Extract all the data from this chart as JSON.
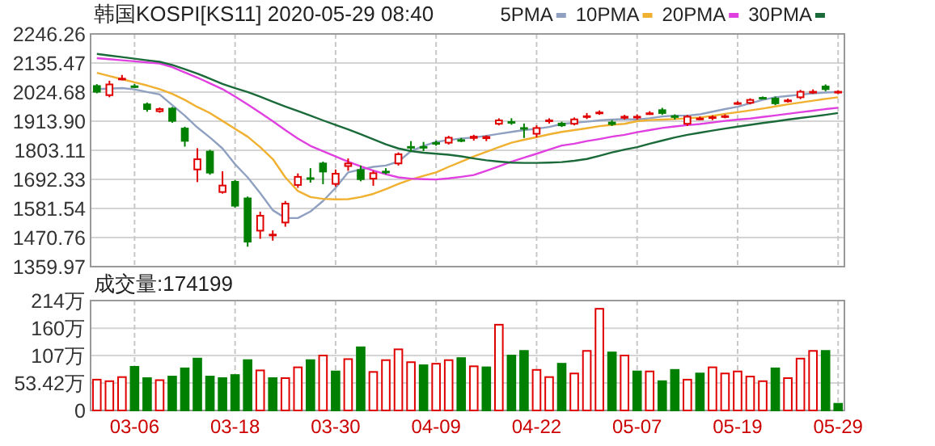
{
  "chart_data": [
    {
      "type": "candlestick",
      "title": "韩国KOSPI[KS11] 2020-05-29 08:40",
      "tick_labels": "y",
      "grid": true,
      "legend": "top right",
      "categories": [
        null,
        null,
        null,
        null,
        null,
        null,
        null,
        null,
        null,
        null,
        null,
        null,
        null,
        null,
        null,
        null,
        null,
        null,
        null,
        null,
        null,
        null,
        null,
        null,
        null,
        null,
        null,
        null,
        null,
        null,
        null,
        null,
        null,
        null,
        null,
        null,
        null,
        null,
        null,
        null,
        null,
        null,
        null,
        null,
        null,
        null,
        null,
        null,
        null,
        null,
        null,
        null,
        null,
        null,
        null,
        null,
        null,
        null,
        null,
        null
      ],
      "ylim": [
        1359.97,
        2246.26
      ],
      "yticks": [
        1359.97,
        1470.76,
        1581.54,
        1692.33,
        1803.11,
        {
          "value": 1913.9,
          "label": "1913.90"
        },
        2024.68,
        2135.47,
        2246.26
      ],
      "ohlc": [
        [
          2051,
          2055,
          2020,
          2023
        ],
        [
          2010,
          2068,
          2005,
          2057
        ],
        [
          2075,
          2090,
          2070,
          2079
        ],
        [
          2050,
          2055,
          2040,
          2046
        ],
        [
          1981,
          1985,
          1950,
          1957
        ],
        [
          1949,
          1966,
          1946,
          1963
        ],
        [
          1965,
          1968,
          1908,
          1912
        ],
        [
          1889,
          1893,
          1817,
          1836
        ],
        [
          1727,
          1811,
          1682,
          1772
        ],
        [
          1801,
          1805,
          1710,
          1715
        ],
        [
          1641,
          1723,
          1638,
          1672
        ],
        [
          1686,
          1690,
          1585,
          1589
        ],
        [
          1623,
          1627,
          1436,
          1452
        ],
        [
          1494,
          1569,
          1466,
          1557
        ],
        [
          1478,
          1498,
          1459,
          1485
        ],
        [
          1525,
          1610,
          1512,
          1603
        ],
        [
          1668,
          1715,
          1660,
          1705
        ],
        [
          1700,
          1735,
          1680,
          1698
        ],
        [
          1756,
          1760,
          1674,
          1719
        ],
        [
          1672,
          1730,
          1665,
          1717
        ],
        [
          1740,
          1772,
          1725,
          1756
        ],
        [
          1731,
          1745,
          1685,
          1690
        ],
        [
          1692,
          1725,
          1668,
          1719
        ],
        [
          1725,
          1735,
          1712,
          1723
        ],
        [
          1750,
          1795,
          1745,
          1791
        ],
        [
          1819,
          1838,
          1797,
          1817
        ],
        [
          1819,
          1835,
          1800,
          1817
        ],
        [
          1834,
          1840,
          1820,
          1830
        ],
        [
          1829,
          1858,
          1825,
          1854
        ],
        [
          1845,
          1850,
          1834,
          1837
        ],
        [
          1847,
          1862,
          1840,
          1858
        ],
        [
          1846,
          1860,
          1838,
          1857
        ],
        [
          1901,
          1925,
          1898,
          1920
        ],
        [
          1914,
          1925,
          1900,
          1912
        ],
        [
          1891,
          1905,
          1850,
          1883
        ],
        [
          1863,
          1898,
          1852,
          1891
        ],
        [
          1912,
          1925,
          1905,
          1920
        ],
        [
          1908,
          1912,
          1892,
          1895
        ],
        [
          1901,
          1928,
          1898,
          1924
        ],
        [
          1928,
          1945,
          1922,
          1936
        ],
        [
          1942,
          1955,
          1938,
          1950
        ],
        [
          1912,
          1918,
          1896,
          1900
        ],
        [
          1924,
          1938,
          1920,
          1934
        ],
        [
          1926,
          1940,
          1920,
          1934
        ],
        [
          1942,
          1952,
          1938,
          1947
        ],
        [
          1959,
          1965,
          1938,
          1942
        ],
        [
          1936,
          1940,
          1920,
          1928
        ],
        [
          1901,
          1938,
          1896,
          1934
        ],
        [
          1922,
          1932,
          1918,
          1927
        ],
        [
          1928,
          1936,
          1918,
          1932
        ],
        [
          1930,
          1940,
          1925,
          1936
        ],
        [
          1979,
          1990,
          1976,
          1986
        ],
        [
          1981,
          2001,
          1978,
          1998
        ],
        [
          2006,
          2008,
          2000,
          2004
        ],
        [
          2003,
          2008,
          1975,
          1979
        ],
        [
          1990,
          2000,
          1985,
          1996
        ],
        [
          2002,
          2033,
          1998,
          2029
        ],
        [
          2023,
          2035,
          2018,
          2029
        ],
        [
          2049,
          2054,
          2028,
          2033
        ],
        [
          2023,
          2032,
          2018,
          2029
        ]
      ],
      "colors": [
        "#008000",
        "#e00000",
        "#e00000",
        "#008000",
        "#008000",
        "#e00000",
        "#008000",
        "#008000",
        "#e00000",
        "#008000",
        "#e00000",
        "#008000",
        "#008000",
        "#e00000",
        "#e00000",
        "#e00000",
        "#e00000",
        "#008000",
        "#008000",
        "#e00000",
        "#e00000",
        "#008000",
        "#e00000",
        "#008000",
        "#e00000",
        "#008000",
        "#008000",
        "#008000",
        "#e00000",
        "#008000",
        "#e00000",
        "#e00000",
        "#e00000",
        "#008000",
        "#008000",
        "#e00000",
        "#e00000",
        "#008000",
        "#e00000",
        "#e00000",
        "#e00000",
        "#008000",
        "#e00000",
        "#e00000",
        "#e00000",
        "#008000",
        "#008000",
        "#e00000",
        "#e00000",
        "#e00000",
        "#e00000",
        "#e00000",
        "#e00000",
        "#008000",
        "#008000",
        "#e00000",
        "#e00000",
        "#e00000",
        "#008000",
        "#e00000"
      ],
      "series": [
        {
          "name": "5PMA",
          "type": "line",
          "color": "#8fa0c0",
          "values": [
            2036,
            2038,
            2040,
            2035,
            2025,
            2016,
            1975,
            1935,
            1890,
            1852,
            1810,
            1750,
            1700,
            1640,
            1575,
            1545,
            1545,
            1570,
            1610,
            1660,
            1719,
            1730,
            1740,
            1745,
            1760,
            1800,
            1820,
            1835,
            1842,
            1848,
            1852,
            1858,
            1866,
            1873,
            1880,
            1885,
            1892,
            1903,
            1908,
            1912,
            1917,
            1920,
            1922,
            1920,
            1925,
            1932,
            1935,
            1935,
            1940,
            1950,
            1960,
            1969,
            1982,
            1995,
            2005,
            2010,
            2015,
            2020,
            2023,
            2025
          ]
        },
        {
          "name": "10PMA",
          "type": "line",
          "color": "#f0b030",
          "values": [
            2098,
            2086,
            2074,
            2062,
            2050,
            2036,
            2018,
            1995,
            1968,
            1945,
            1915,
            1885,
            1855,
            1815,
            1770,
            1700,
            1648,
            1625,
            1618,
            1616,
            1617,
            1625,
            1637,
            1655,
            1675,
            1692,
            1706,
            1719,
            1740,
            1760,
            1780,
            1797,
            1815,
            1832,
            1843,
            1853,
            1864,
            1873,
            1880,
            1887,
            1895,
            1900,
            1904,
            1914,
            1918,
            1920,
            1922,
            1925,
            1928,
            1934,
            1942,
            1948,
            1955,
            1962,
            1970,
            1978,
            1985,
            1992,
            1999,
            2005
          ]
        },
        {
          "name": "20PMA",
          "type": "line",
          "color": "#e040e0",
          "values": [
            2154,
            2150,
            2146,
            2142,
            2138,
            2134,
            2120,
            2100,
            2080,
            2058,
            2036,
            2008,
            1978,
            1946,
            1914,
            1880,
            1848,
            1820,
            1800,
            1780,
            1760,
            1742,
            1726,
            1712,
            1700,
            1695,
            1693,
            1692,
            1696,
            1702,
            1709,
            1725,
            1742,
            1760,
            1775,
            1790,
            1806,
            1821,
            1828,
            1838,
            1846,
            1855,
            1862,
            1872,
            1880,
            1888,
            1894,
            1899,
            1903,
            1909,
            1915,
            1920,
            1924,
            1930,
            1936,
            1942,
            1948,
            1954,
            1960,
            1965
          ]
        },
        {
          "name": "30PMA",
          "type": "line",
          "color": "#1a6a3a",
          "values": [
            2170,
            2164,
            2158,
            2152,
            2146,
            2140,
            2128,
            2112,
            2095,
            2076,
            2056,
            2040,
            2025,
            2007,
            1988,
            1970,
            1953,
            1935,
            1917,
            1900,
            1883,
            1864,
            1845,
            1826,
            1810,
            1800,
            1794,
            1790,
            1786,
            1780,
            1772,
            1765,
            1760,
            1756,
            1755,
            1755,
            1756,
            1758,
            1763,
            1770,
            1782,
            1795,
            1806,
            1815,
            1828,
            1840,
            1852,
            1862,
            1870,
            1878,
            1886,
            1893,
            1900,
            1907,
            1913,
            1920,
            1926,
            1932,
            1938,
            1945
          ]
        }
      ]
    },
    {
      "type": "bar",
      "title": "成交量:174199",
      "grid": true,
      "categories": [
        null,
        null,
        null,
        "03-06",
        null,
        null,
        null,
        null,
        null,
        null,
        null,
        "03-18",
        null,
        null,
        null,
        null,
        null,
        null,
        null,
        "03-30",
        null,
        null,
        null,
        null,
        null,
        null,
        null,
        "04-09",
        null,
        null,
        null,
        null,
        null,
        null,
        null,
        "04-22",
        null,
        null,
        null,
        null,
        null,
        null,
        null,
        "05-07",
        null,
        null,
        null,
        null,
        null,
        null,
        null,
        "05-19",
        null,
        null,
        null,
        null,
        null,
        null,
        null,
        "05-29"
      ],
      "ylim": [
        0,
        214
      ],
      "yticks": [
        0,
        {
          "value": 53.42,
          "label": "53.42万"
        },
        {
          "value": 107,
          "label": "107万"
        },
        {
          "value": 160,
          "label": "160万"
        },
        {
          "value": 214,
          "label": "214万"
        }
      ],
      "values": [
        60,
        57,
        65,
        85,
        63,
        59,
        66,
        82,
        101,
        66,
        63,
        69,
        98,
        78,
        63,
        63,
        84,
        98,
        107,
        76,
        100,
        123,
        75,
        98,
        119,
        94,
        88,
        91,
        98,
        102,
        86,
        84,
        167,
        107,
        116,
        79,
        65,
        91,
        72,
        116,
        198,
        113,
        107,
        76,
        76,
        57,
        79,
        60,
        72,
        84,
        72,
        76,
        66,
        57,
        82,
        63,
        101,
        116,
        116,
        13
      ],
      "colors": [
        "#e00000",
        "#e00000",
        "#e00000",
        "#008000",
        "#008000",
        "#e00000",
        "#008000",
        "#008000",
        "#008000",
        "#008000",
        "#008000",
        "#008000",
        "#008000",
        "#e00000",
        "#008000",
        "#e00000",
        "#e00000",
        "#008000",
        "#e00000",
        "#008000",
        "#e00000",
        "#008000",
        "#e00000",
        "#e00000",
        "#e00000",
        "#e00000",
        "#008000",
        "#e00000",
        "#e00000",
        "#008000",
        "#e00000",
        "#008000",
        "#e00000",
        "#008000",
        "#008000",
        "#e00000",
        "#e00000",
        "#008000",
        "#e00000",
        "#e00000",
        "#e00000",
        "#008000",
        "#e00000",
        "#008000",
        "#e00000",
        "#008000",
        "#008000",
        "#e00000",
        "#008000",
        "#e00000",
        "#e00000",
        "#e00000",
        "#e00000",
        "#e00000",
        "#008000",
        "#e00000",
        "#e00000",
        "#e00000",
        "#008000",
        "#008000"
      ]
    }
  ]
}
